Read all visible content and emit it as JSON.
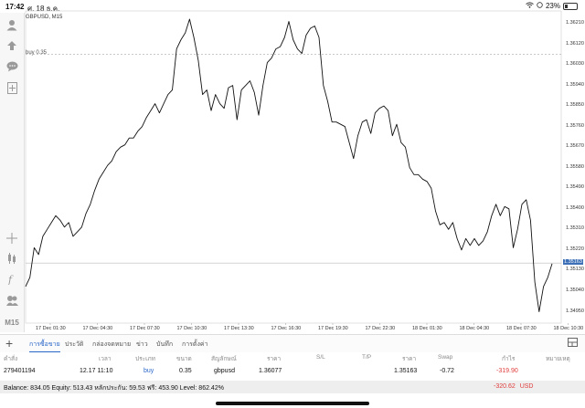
{
  "status": {
    "time": "17:42",
    "date": "ศ. 18 ธ.ค.",
    "battery": "23%"
  },
  "chart": {
    "symbol": "GBPUSD, M15",
    "buy_line_label": "buy 0.35",
    "y_ticks": [
      "1.36210",
      "1.36120",
      "1.36030",
      "1.35940",
      "1.35850",
      "1.35760",
      "1.35670",
      "1.35580",
      "1.35490",
      "1.35400",
      "1.35310",
      "1.35220",
      "1.35163",
      "1.35130",
      "1.35040",
      "1.34950"
    ],
    "current_price": "1.35163",
    "x_ticks": [
      "17 Dec 01:30",
      "17 Dec 04:30",
      "17 Dec 07:30",
      "17 Dec 10:30",
      "17 Dec 13:30",
      "17 Dec 16:30",
      "17 Dec 19:30",
      "17 Dec 22:30",
      "18 Dec 01:30",
      "18 Dec 04:30",
      "18 Dec 07:30",
      "18 Dec 10:30"
    ],
    "colors": {
      "line": "#111111",
      "current_label_bg": "#3c6fb6",
      "grid": "#cfcfcf"
    }
  },
  "chart_data": {
    "type": "line",
    "title": "GBPUSD, M15",
    "xlabel": "",
    "ylabel": "",
    "ylim": [
      1.349,
      1.3625
    ],
    "grid": false,
    "series": [
      {
        "values": [
          1.3506,
          1.351,
          1.3523,
          1.352,
          1.3528,
          1.3531,
          1.3534,
          1.3537,
          1.3535,
          1.3532,
          1.3534,
          1.3528,
          1.353,
          1.3532,
          1.3538,
          1.3542,
          1.3548,
          1.3553,
          1.3556,
          1.3559,
          1.3561,
          1.3565,
          1.3567,
          1.3568,
          1.3571,
          1.3571,
          1.3574,
          1.3576,
          1.358,
          1.3583,
          1.3586,
          1.3582,
          1.3586,
          1.359,
          1.3592,
          1.361,
          1.3614,
          1.3617,
          1.3623,
          1.3615,
          1.3605,
          1.359,
          1.3592,
          1.3583,
          1.359,
          1.3586,
          1.3584,
          1.3593,
          1.3594,
          1.3579,
          1.3592,
          1.3594,
          1.3596,
          1.3591,
          1.3581,
          1.3594,
          1.3604,
          1.3606,
          1.361,
          1.3611,
          1.3615,
          1.3622,
          1.3614,
          1.361,
          1.3608,
          1.3616,
          1.3619,
          1.362,
          1.3615,
          1.3594,
          1.3587,
          1.3578,
          1.3578,
          1.3577,
          1.3576,
          1.3569,
          1.3562,
          1.3572,
          1.3578,
          1.3579,
          1.3573,
          1.3582,
          1.3584,
          1.3585,
          1.3583,
          1.3572,
          1.3577,
          1.3569,
          1.3567,
          1.3558,
          1.3555,
          1.3555,
          1.3553,
          1.3552,
          1.3549,
          1.3539,
          1.3533,
          1.3534,
          1.3531,
          1.3534,
          1.3527,
          1.3522,
          1.3527,
          1.3524,
          1.3527,
          1.3524,
          1.3526,
          1.353,
          1.3537,
          1.3542,
          1.3537,
          1.3541,
          1.354,
          1.3523,
          1.3531,
          1.3542,
          1.3544,
          1.3535,
          1.3508,
          1.3495,
          1.3506,
          1.351,
          1.3516
        ]
      }
    ]
  },
  "tabs": {
    "items": [
      "การซื้อขาย",
      "ประวัติ",
      "กล่องจดหมาย",
      "ข่าว",
      "บันทึก",
      "การตั้งค่า"
    ],
    "active": "การซื้อขาย"
  },
  "table": {
    "headers": [
      "คำสั่ง",
      "เวลา",
      "ประเภท",
      "ขนาด",
      "สัญลักษณ์",
      "ราคา",
      "S/L",
      "T/P",
      "ราคา",
      "Swap",
      "กำไร",
      "หมายเหตุ"
    ],
    "row": {
      "order": "279401194",
      "time": "12.17 11:10",
      "type": "buy",
      "size": "0.35",
      "symbol": "gbpusd",
      "price_open": "1.36077",
      "sl": "",
      "tp": "",
      "price_current": "1.35163",
      "swap": "-0.72",
      "profit": "-319.90",
      "comment": ""
    }
  },
  "balance": {
    "text": "Balance: 834.05 Equity: 513.43 หลักประกัน: 59.53 ฟรี: 453.90 Level: 862.42%",
    "pnl": "-320.62",
    "currency": "USD"
  },
  "toolbar": {
    "timeframe": "M15"
  }
}
